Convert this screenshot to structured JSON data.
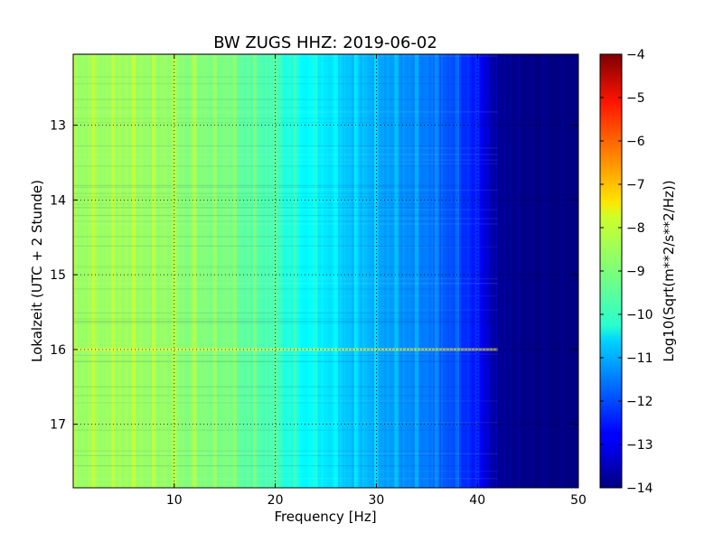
{
  "chart_data": {
    "type": "heatmap",
    "title": "BW ZUGS HHZ: 2019-06-02",
    "xlabel": "Frequency [Hz]",
    "ylabel": "Lokalzeit (UTC + 2 Stunde)",
    "xlim": [
      0,
      50
    ],
    "ylim": [
      12.05,
      17.85
    ],
    "y_inverted": true,
    "xticks": [
      10,
      20,
      30,
      40,
      50
    ],
    "yticks": [
      13,
      14,
      15,
      16,
      17
    ],
    "grid": true,
    "colormap": "jet",
    "colorbar": {
      "label": "Log10(Sqrt(m**2/s**2/Hz))",
      "range": [
        -14,
        -4
      ],
      "ticks": [
        -4,
        -5,
        -6,
        -7,
        -8,
        -9,
        -10,
        -11,
        -12,
        -13,
        -14
      ]
    },
    "frequency_profile": {
      "frequency_hz": [
        0,
        5,
        10,
        15,
        20,
        22,
        25,
        28,
        30,
        33,
        35,
        38,
        40,
        42,
        50
      ],
      "log10_amplitude": [
        -8.7,
        -8.7,
        -8.8,
        -9.1,
        -9.6,
        -10.1,
        -10.4,
        -10.9,
        -11.0,
        -11.4,
        -11.6,
        -12.1,
        -12.6,
        -13.8,
        -14.0
      ]
    },
    "notable_features": [
      {
        "time_hours": 16.0,
        "description": "stronger horizontal band across 0–42 Hz"
      },
      {
        "frequency_hz": 42,
        "description": "sharp cutoff to background level above ~42 Hz"
      }
    ]
  }
}
